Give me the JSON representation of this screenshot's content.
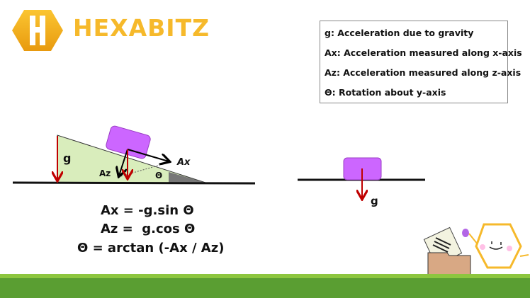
{
  "logo": {
    "brand": "HEXABITZ",
    "icon": "hexagon-h-logo",
    "color": "#f6b92b"
  },
  "legend": [
    "g: Acceleration due to gravity",
    "Ax: Acceleration measured along x-axis",
    "Az: Acceleration measured along z-axis",
    "Θ: Rotation about y-axis"
  ],
  "incline_diagram": {
    "g": "g",
    "ax": "Ax",
    "az": "Az",
    "theta": "Θ"
  },
  "flat_diagram": {
    "g": "g"
  },
  "equations": [
    "Ax = -g.sin Θ",
    "Az =  g.cos Θ",
    "Θ = arctan (-Ax / Az)"
  ],
  "colors": {
    "block": "#cc66ff",
    "incline": "#d9edbc",
    "arrow_gravity": "#c00000",
    "ground": "#5a9e32"
  }
}
